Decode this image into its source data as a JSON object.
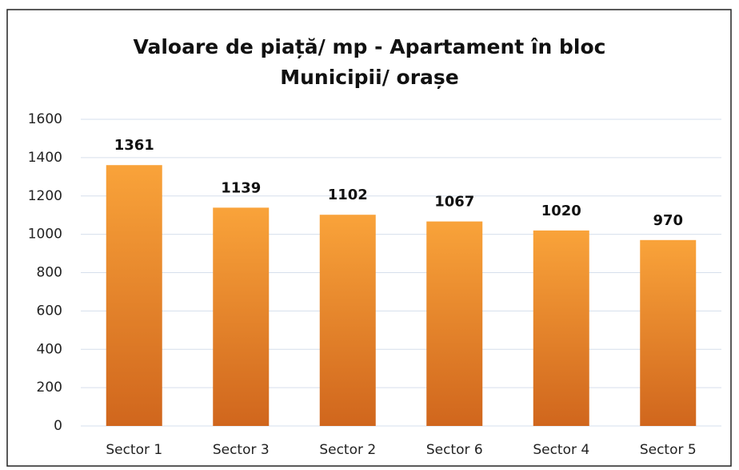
{
  "chart_data": {
    "type": "bar",
    "title": "Valoare de piață/ mp - Apartament în bloc",
    "subtitle": "Municipii/ orașe",
    "categories": [
      "Sector 1",
      "Sector 3",
      "Sector 2",
      "Sector 6",
      "Sector 4",
      "Sector 5"
    ],
    "values": [
      1361,
      1139,
      1102,
      1067,
      1020,
      970
    ],
    "color": "#ef8a2a",
    "ylim": [
      0,
      1600
    ],
    "yticks": [
      0,
      200,
      400,
      600,
      800,
      1000,
      1200,
      1400,
      1600
    ],
    "grid": true
  }
}
